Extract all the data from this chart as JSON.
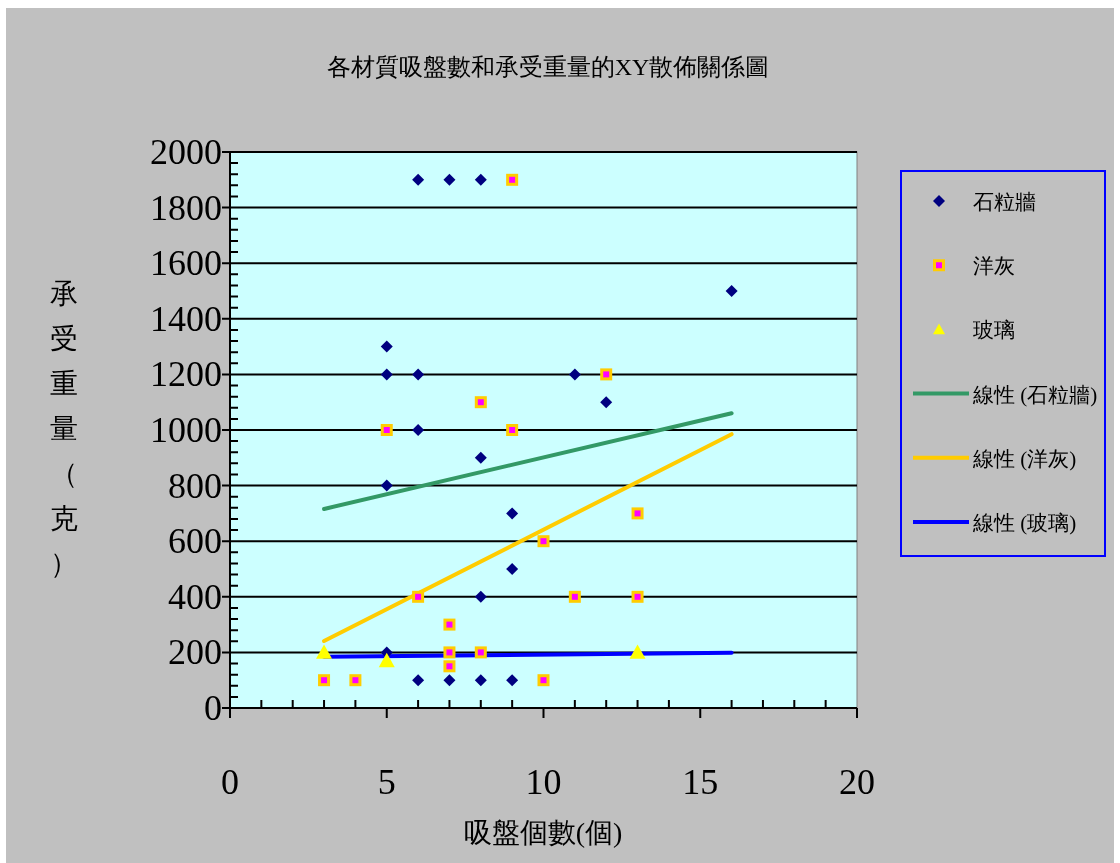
{
  "chart_data": {
    "type": "scatter",
    "title": "各材質吸盤數和承受重量的XY散佈關係圖",
    "xlabel": "吸盤個數(個)",
    "ylabel": "承受重量（克）",
    "xlim": [
      0,
      20
    ],
    "xticks": [
      0,
      5,
      10,
      15,
      20
    ],
    "ylim": [
      0,
      2000
    ],
    "yticks": [
      0,
      200,
      400,
      600,
      800,
      1000,
      1200,
      1400,
      1600,
      1800,
      2000
    ],
    "grid": "y",
    "legend": "right",
    "series": [
      {
        "name": "石粒牆",
        "type": "scatter",
        "marker": "diamond",
        "color": "#000080",
        "x": [
          6,
          7,
          8,
          16,
          5,
          5,
          6,
          11,
          12,
          6,
          5,
          8,
          9,
          9,
          8,
          5,
          6,
          7,
          8,
          9
        ],
        "values": [
          1900,
          1900,
          1900,
          1500,
          1300,
          1200,
          1200,
          1200,
          1100,
          1000,
          800,
          900,
          700,
          500,
          400,
          200,
          100,
          100,
          100,
          100
        ]
      },
      {
        "name": "洋灰",
        "type": "scatter",
        "marker": "square",
        "color": "#ff00ff",
        "x": [
          9,
          12,
          8,
          5,
          9,
          13,
          10,
          6,
          11,
          13,
          7,
          7,
          8,
          7,
          3,
          4,
          10
        ],
        "values": [
          1900,
          1200,
          1100,
          1000,
          1000,
          700,
          600,
          400,
          400,
          400,
          300,
          200,
          200,
          150,
          100,
          100,
          100
        ]
      },
      {
        "name": "玻璃",
        "type": "scatter",
        "marker": "triangle",
        "color": "#ffff00",
        "x": [
          3,
          5,
          13
        ],
        "values": [
          200,
          170,
          200
        ]
      },
      {
        "name": "線性 (石粒牆)",
        "type": "line",
        "marker": "none",
        "color": "#339966",
        "x": [
          3,
          16
        ],
        "values": [
          716,
          1060
        ]
      },
      {
        "name": "線性 (洋灰)",
        "type": "line",
        "marker": "none",
        "color": "#ffcc00",
        "x": [
          3,
          16
        ],
        "values": [
          241,
          985
        ]
      },
      {
        "name": "線性 (玻璃)",
        "type": "line",
        "marker": "none",
        "color": "#0000ff",
        "x": [
          3,
          16
        ],
        "values": [
          184,
          199
        ]
      }
    ]
  }
}
